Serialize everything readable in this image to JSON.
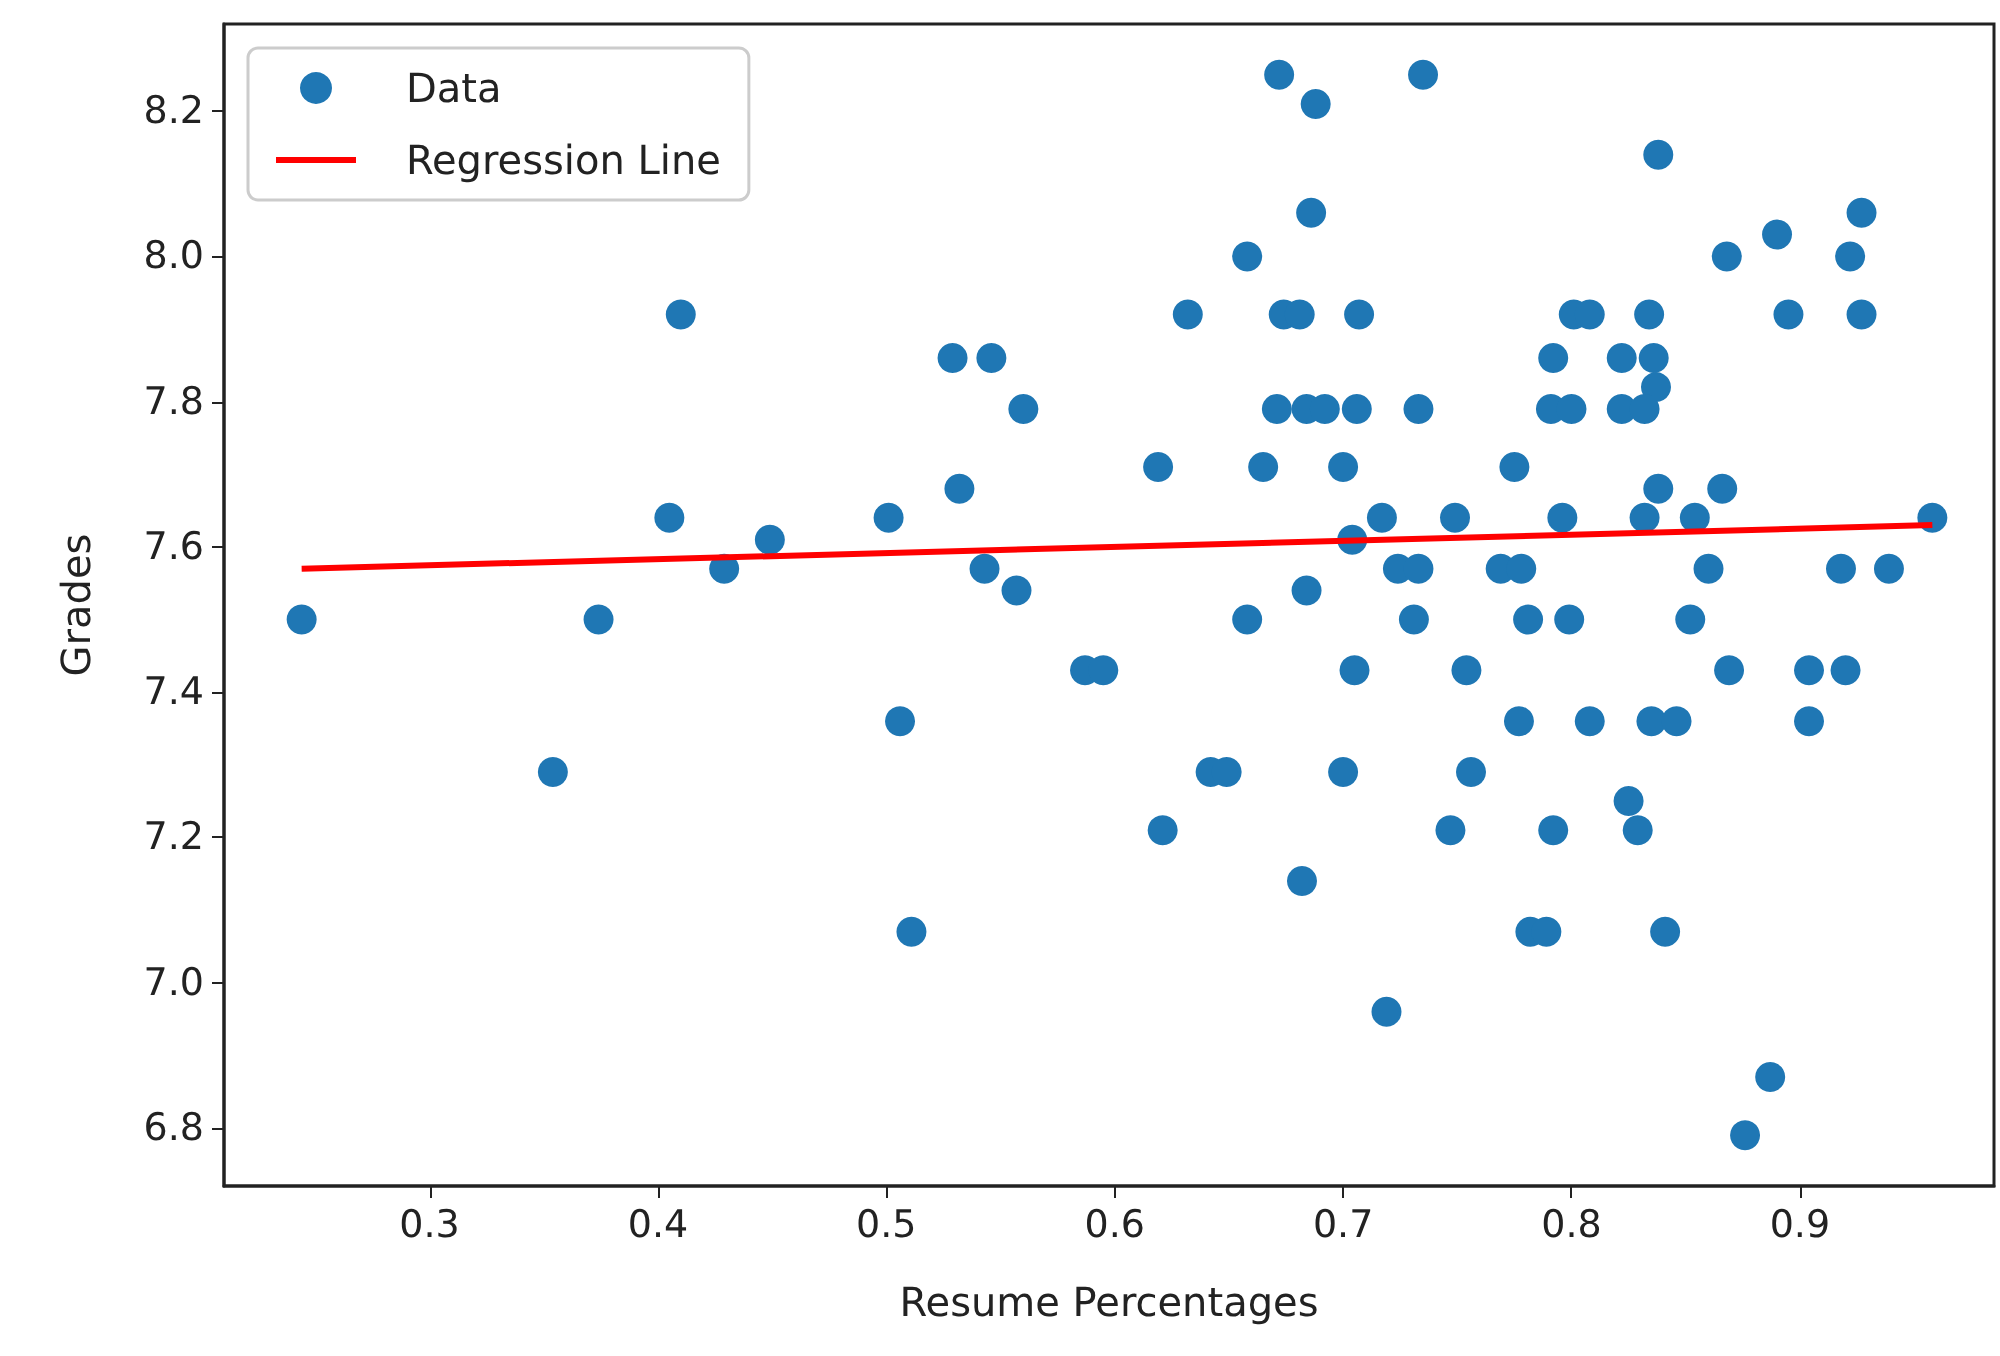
{
  "chart_data": {
    "type": "scatter",
    "xlabel": "Resume Percentages",
    "ylabel": "Grades",
    "xlim": [
      0.21,
      0.985
    ],
    "ylim": [
      6.72,
      8.32
    ],
    "xticks": [
      0.3,
      0.4,
      0.5,
      0.6,
      0.7,
      0.8,
      0.9
    ],
    "yticks": [
      6.8,
      {
        "value": 7,
        "label": "7.0"
      },
      7.2,
      7.4,
      7.6,
      7.8,
      {
        "value": 8,
        "label": "8.0"
      },
      8.2
    ],
    "grid": false,
    "legend": "top left",
    "series": [
      {
        "name": "Data",
        "marker": "circle",
        "color": "#1f77b4",
        "x": [
          0.244,
          0.354,
          0.374,
          0.405,
          0.41,
          0.429,
          0.449,
          0.501,
          0.506,
          0.511,
          0.529,
          0.532,
          0.546,
          0.543,
          0.557,
          0.56,
          0.587,
          0.595,
          0.672,
          0.688,
          0.735,
          0.838,
          0.686,
          0.89,
          0.927,
          0.658,
          0.868,
          0.922,
          0.632,
          0.674,
          0.681,
          0.707,
          0.801,
          0.808,
          0.834,
          0.895,
          0.927,
          0.792,
          0.822,
          0.836,
          0.837,
          0.671,
          0.684,
          0.692,
          0.706,
          0.733,
          0.791,
          0.8,
          0.822,
          0.832,
          0.619,
          0.665,
          0.7,
          0.775,
          0.838,
          0.866,
          0.717,
          0.749,
          0.796,
          0.832,
          0.854,
          0.958,
          0.704,
          0.724,
          0.733,
          0.769,
          0.778,
          0.86,
          0.918,
          0.939,
          0.684,
          0.658,
          0.731,
          0.781,
          0.799,
          0.852,
          0.705,
          0.754,
          0.869,
          0.904,
          0.92,
          0.777,
          0.808,
          0.835,
          0.846,
          0.904,
          0.642,
          0.649,
          0.7,
          0.756,
          0.825,
          0.621,
          0.747,
          0.792,
          0.829,
          0.682,
          0.782,
          0.789,
          0.841,
          0.719,
          0.887,
          0.876
        ],
        "values": [
          7.5,
          7.29,
          7.5,
          7.64,
          7.92,
          7.57,
          7.61,
          7.64,
          7.36,
          7.07,
          7.86,
          7.68,
          7.86,
          7.57,
          7.54,
          7.79,
          7.43,
          7.43,
          8.25,
          8.21,
          8.25,
          8.14,
          8.06,
          8.03,
          8.06,
          8.0,
          8.0,
          8.0,
          7.92,
          7.92,
          7.92,
          7.92,
          7.92,
          7.92,
          7.92,
          7.92,
          7.92,
          7.86,
          7.86,
          7.86,
          7.82,
          7.79,
          7.79,
          7.79,
          7.79,
          7.79,
          7.79,
          7.79,
          7.79,
          7.79,
          7.71,
          7.71,
          7.71,
          7.71,
          7.68,
          7.68,
          7.64,
          7.64,
          7.64,
          7.64,
          7.64,
          7.64,
          7.61,
          7.57,
          7.57,
          7.57,
          7.57,
          7.57,
          7.57,
          7.57,
          7.54,
          7.5,
          7.5,
          7.5,
          7.5,
          7.5,
          7.43,
          7.43,
          7.43,
          7.43,
          7.43,
          7.36,
          7.36,
          7.36,
          7.36,
          7.36,
          7.29,
          7.29,
          7.29,
          7.29,
          7.25,
          7.21,
          7.21,
          7.21,
          7.21,
          7.14,
          7.07,
          7.07,
          7.07,
          6.96,
          6.87,
          6.79
        ]
      },
      {
        "name": "Regression Line",
        "type": "line",
        "marker": "none",
        "line_style": "solid",
        "color": "#ff0000",
        "x": [
          0.244,
          0.958
        ],
        "values": [
          7.57,
          7.63
        ]
      }
    ]
  }
}
